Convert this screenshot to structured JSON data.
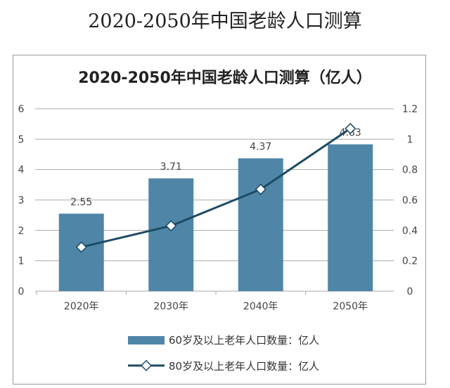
{
  "page_title": "2020-2050年中国老龄人口测算",
  "chart_data": {
    "type": "bar+line",
    "title": "2020-2050年中国老龄人口测算（亿人）",
    "categories": [
      "2020年",
      "2030年",
      "2040年",
      "2050年"
    ],
    "series": [
      {
        "name": "60岁及以上老年人口数量：亿人",
        "type": "bar",
        "axis": "left",
        "values": [
          2.55,
          3.71,
          4.37,
          4.83
        ],
        "data_labels": [
          "2.55",
          "3.71",
          "4.37",
          "4.83"
        ],
        "color": "#4f86a8"
      },
      {
        "name": "80岁及以上老年人口数量：亿人",
        "type": "line",
        "axis": "right",
        "marker": "diamond",
        "values": [
          0.29,
          0.43,
          0.67,
          1.07
        ],
        "color": "#1d4a64"
      }
    ],
    "left_axis": {
      "ylim": [
        0,
        6
      ],
      "ticks": [
        "0",
        "1",
        "2",
        "3",
        "4",
        "5",
        "6"
      ]
    },
    "right_axis": {
      "ylim": [
        0,
        1.2
      ],
      "ticks": [
        "0",
        "0.2",
        "0.4",
        "0.6",
        "0.8",
        "1",
        "1.2"
      ]
    },
    "grid": true,
    "legend": "bottom"
  }
}
